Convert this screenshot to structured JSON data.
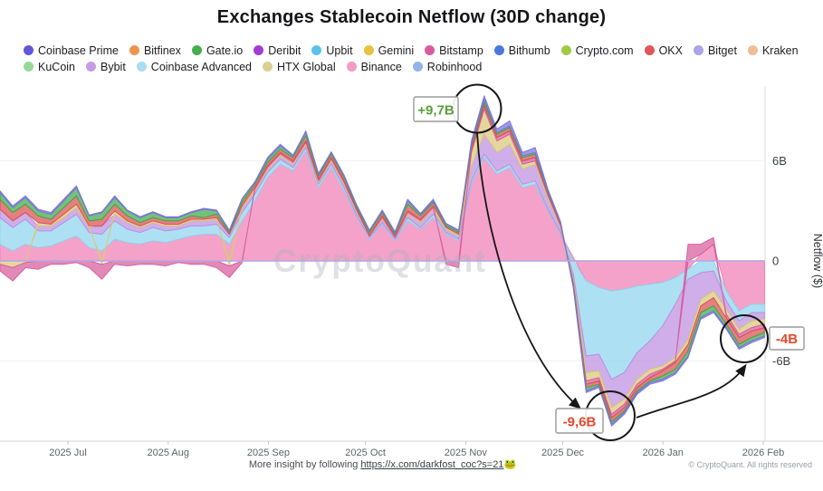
{
  "title": "Exchanges Stablecoin Netflow (30D change)",
  "watermark": "CryptoQuant",
  "legend": [
    {
      "label": "Coinbase Prime",
      "color": "#6156d8"
    },
    {
      "label": "Bitfinex",
      "color": "#ef944d"
    },
    {
      "label": "Gate.io",
      "color": "#47ae4f"
    },
    {
      "label": "Deribit",
      "color": "#a43bd4"
    },
    {
      "label": "Upbit",
      "color": "#59c4e7"
    },
    {
      "label": "Gemini",
      "color": "#e6c23e"
    },
    {
      "label": "Bitstamp",
      "color": "#d85b9d"
    },
    {
      "label": "Bithumb",
      "color": "#4b77dd"
    },
    {
      "label": "Crypto.com",
      "color": "#a0cb45"
    },
    {
      "label": "OKX",
      "color": "#e05757"
    },
    {
      "label": "Bitget",
      "color": "#a9a4ec"
    },
    {
      "label": "Kraken",
      "color": "#f0bd94"
    },
    {
      "label": "KuCoin",
      "color": "#96d899"
    },
    {
      "label": "Bybit",
      "color": "#c79ce4"
    },
    {
      "label": "Coinbase Advanced",
      "color": "#a9ddf1"
    },
    {
      "label": "HTX Global",
      "color": "#dccf92"
    },
    {
      "label": "Binance",
      "color": "#f29bc6"
    },
    {
      "label": "Robinhood",
      "color": "#92b4e9"
    }
  ],
  "footer": {
    "center_prefix": "More insight by following ",
    "link": "https://x.com/darkfost_coc?s=21",
    "emoji": "🐸",
    "copyright": "© CryptoQuant. All rights reserved"
  },
  "chart_data": {
    "type": "area",
    "stacked": true,
    "diverging": true,
    "title": "Exchanges Stablecoin Netflow (30D change)",
    "ylabel": "Netflow ($)",
    "y_unit": "billions USD",
    "ylim": [
      -10.5,
      10.5
    ],
    "grid": "horizontal-faint",
    "legend_position": "top",
    "x_start": "2025-06-10",
    "x_step_days": 3.94,
    "n_points": 61,
    "x_ticks": [
      {
        "label": "2025 Jul",
        "day": 21
      },
      {
        "label": "2025 Aug",
        "day": 52
      },
      {
        "label": "2025 Sep",
        "day": 83
      },
      {
        "label": "2025 Oct",
        "day": 113
      },
      {
        "label": "2025 Nov",
        "day": 144
      },
      {
        "label": "2025 Dec",
        "day": 174
      },
      {
        "label": "2026 Jan",
        "day": 205
      },
      {
        "label": "2026 Feb",
        "day": 236
      }
    ],
    "y_ticks": [
      {
        "label": "6B",
        "value": 6
      },
      {
        "label": "0",
        "value": 0
      },
      {
        "label": "-6B",
        "value": -6
      }
    ],
    "annotations": [
      {
        "text": "+9,7B",
        "value_b": 9.7,
        "x_approx": "2025-11-05",
        "color": "#58a03a"
      },
      {
        "text": "-9,6B",
        "value_b": -9.6,
        "x_approx": "2025-12-15",
        "color": "#e8472a"
      },
      {
        "text": "-4B",
        "value_b": -4.0,
        "x_approx": "2026-01-30",
        "color": "#e8472a"
      }
    ],
    "series": [
      {
        "name": "Binance",
        "color": "#f07eb4",
        "values": [
          1.0,
          0.6,
          1.0,
          0.8,
          0.9,
          1.2,
          1.5,
          0.8,
          0.6,
          1.3,
          1.1,
          1.0,
          1.2,
          1.1,
          1.3,
          1.5,
          1.6,
          1.6,
          1.0,
          2.4,
          3.6,
          5.0,
          5.8,
          5.4,
          6.6,
          4.4,
          5.6,
          4.2,
          2.6,
          1.3,
          2.2,
          1.2,
          2.4,
          1.9,
          2.6,
          1.6,
          1.2,
          4.6,
          6.2,
          5.2,
          5.6,
          4.4,
          4.6,
          3.0,
          1.6,
          0.2,
          -1.2,
          -1.6,
          -1.8,
          -1.7,
          -1.5,
          -1.4,
          -1.3,
          -1.0,
          -0.5,
          0.4,
          1.0,
          -1.8,
          -3.0,
          -2.6,
          -2.6
        ]
      },
      {
        "name": "Coinbase Advanced",
        "color": "#8fd4ee",
        "values": [
          1.6,
          1.4,
          1.5,
          1.0,
          0.9,
          1.1,
          1.3,
          0.9,
          1.0,
          1.1,
          0.8,
          0.7,
          0.8,
          0.7,
          0.6,
          0.6,
          0.5,
          0.6,
          0.4,
          0.5,
          0.4,
          0.3,
          0.3,
          0.2,
          0.2,
          0.2,
          0.2,
          0.2,
          0.1,
          0.1,
          0.1,
          0.1,
          0.2,
          0.1,
          0.2,
          0.1,
          0.1,
          0.2,
          0.2,
          0.2,
          0.2,
          0.2,
          0.2,
          0.1,
          0.1,
          -0.8,
          -4.5,
          -4.0,
          -5.3,
          -5.0,
          -4.0,
          -3.4,
          -2.6,
          -1.6,
          -0.6,
          -0.7,
          -0.6,
          -0.6,
          -0.6,
          -0.5,
          -0.5
        ]
      },
      {
        "name": "Bybit",
        "color": "#bd8fe0",
        "values": [
          0.5,
          0.4,
          0.4,
          0.3,
          0.3,
          0.3,
          0.4,
          0.3,
          0.5,
          0.4,
          0.4,
          0.3,
          0.3,
          0.3,
          0.2,
          0.3,
          0.3,
          0.3,
          0.2,
          0.3,
          0.2,
          0.2,
          0.2,
          0.2,
          0.2,
          0.1,
          0.2,
          0.2,
          0.2,
          0.1,
          0.2,
          0.1,
          0.2,
          0.3,
          0.3,
          0.2,
          0.2,
          0.9,
          1.2,
          1.1,
          1.2,
          0.9,
          1.0,
          0.6,
          0.3,
          -0.3,
          -1.0,
          -1.0,
          -1.7,
          -1.6,
          -1.6,
          -1.7,
          -2.4,
          -3.2,
          -3.6,
          -1.6,
          -1.2,
          -0.5,
          -0.5,
          -0.5,
          -0.4
        ]
      },
      {
        "name": "HTX Global",
        "color": "#d9c878",
        "values": [
          -0.2,
          -0.4,
          -0.1,
          0.2,
          0.1,
          0.2,
          0.2,
          0.1,
          -0.2,
          0.2,
          0.1,
          0.1,
          0.1,
          0.1,
          0.1,
          0.1,
          0.1,
          0.1,
          -0.3,
          0.1,
          0.1,
          0.1,
          0.1,
          0.1,
          0.1,
          0.1,
          0.1,
          0.1,
          0.1,
          0.0,
          0.1,
          0.0,
          0.1,
          0.1,
          0.1,
          0.1,
          0.1,
          0.8,
          1.5,
          0.7,
          0.6,
          0.3,
          0.2,
          0.2,
          0.1,
          -0.2,
          -0.5,
          -0.4,
          -0.4,
          -0.3,
          -0.3,
          -0.3,
          -0.2,
          -0.2,
          -0.3,
          -0.4,
          -0.4,
          -0.3,
          -0.3,
          -0.4,
          -0.3
        ]
      },
      {
        "name": "Bitstamp",
        "color": "#d85b9d",
        "values": [
          -0.4,
          -0.8,
          -0.3,
          -0.5,
          -0.2,
          -0.2,
          -0.1,
          -0.4,
          -0.9,
          -0.2,
          -0.3,
          -0.2,
          -0.2,
          -0.3,
          -0.1,
          -0.2,
          -0.2,
          -0.4,
          -0.7,
          -0.1,
          0.1,
          0.1,
          0.1,
          0.1,
          0.1,
          0.1,
          0.1,
          0.1,
          0.1,
          0.0,
          0.1,
          0.1,
          0.1,
          0.1,
          0.1,
          -0.2,
          -0.4,
          0.2,
          0.2,
          0.2,
          0.2,
          0.2,
          0.2,
          0.1,
          0.1,
          -0.1,
          -0.2,
          -0.2,
          -0.2,
          -0.2,
          -0.2,
          -0.2,
          -0.1,
          -0.1,
          1.0,
          0.6,
          0.4,
          -0.2,
          -0.2,
          -0.2,
          -0.2
        ]
      },
      {
        "name": "OKX",
        "color": "#d94f4f",
        "values": [
          0.6,
          0.5,
          0.5,
          0.4,
          0.3,
          0.4,
          0.5,
          0.3,
          0.4,
          0.4,
          0.3,
          0.2,
          0.2,
          0.2,
          0.2,
          0.2,
          0.1,
          0.2,
          0.1,
          0.2,
          0.2,
          0.2,
          0.2,
          0.2,
          0.3,
          0.2,
          0.2,
          0.2,
          0.1,
          0.2,
          0.2,
          0.1,
          0.4,
          0.2,
          0.2,
          0.1,
          0.1,
          0.2,
          0.2,
          0.2,
          0.2,
          0.2,
          0.2,
          0.1,
          0.1,
          -0.1,
          -0.2,
          -0.2,
          -0.25,
          -0.2,
          -0.2,
          -0.2,
          -0.3,
          -0.4,
          -0.4,
          -0.4,
          -0.5,
          -0.4,
          -0.4,
          -0.4,
          -0.3
        ]
      },
      {
        "name": "Gate.io",
        "color": "#3fa94a",
        "values": [
          0.4,
          0.3,
          0.4,
          0.3,
          0.3,
          0.4,
          0.5,
          0.3,
          0.4,
          0.4,
          0.3,
          0.3,
          0.3,
          0.2,
          0.2,
          0.2,
          0.5,
          0.2,
          0.1,
          0.2,
          0.1,
          0.2,
          0.2,
          0.1,
          0.2,
          0.1,
          0.1,
          0.1,
          0.1,
          0.1,
          0.1,
          0.1,
          0.2,
          0.1,
          0.1,
          0.1,
          0.1,
          0.1,
          0.2,
          0.1,
          0.1,
          0.1,
          0.1,
          0.1,
          0.0,
          -0.1,
          -0.2,
          -0.1,
          -0.15,
          -0.1,
          -0.1,
          -0.1,
          -0.2,
          -0.2,
          -0.3,
          -0.3,
          -0.3,
          -0.2,
          -0.2,
          -0.2,
          -0.2
        ]
      },
      {
        "name": "Coinbase Prime",
        "color": "#7a72dd",
        "values": [
          0.1,
          0.1,
          0.1,
          0.1,
          0.1,
          0.1,
          0.1,
          0.05,
          0.05,
          0.1,
          0.05,
          0.05,
          0.05,
          0.05,
          0.05,
          0.05,
          0.05,
          0.05,
          0.05,
          0.05,
          0.05,
          0.1,
          0.1,
          0.05,
          0.1,
          0.05,
          0.05,
          0.05,
          0.05,
          0.05,
          0.05,
          0.05,
          0.1,
          0.05,
          0.1,
          0.05,
          0.05,
          0.2,
          0.2,
          0.2,
          0.3,
          0.2,
          0.3,
          0.1,
          0.05,
          -0.05,
          -0.1,
          -0.1,
          -0.1,
          -0.1,
          -0.1,
          -0.1,
          -0.1,
          -0.1,
          -0.1,
          -0.1,
          -0.1,
          -0.1,
          -0.1,
          -0.1,
          -0.1
        ]
      }
    ]
  }
}
